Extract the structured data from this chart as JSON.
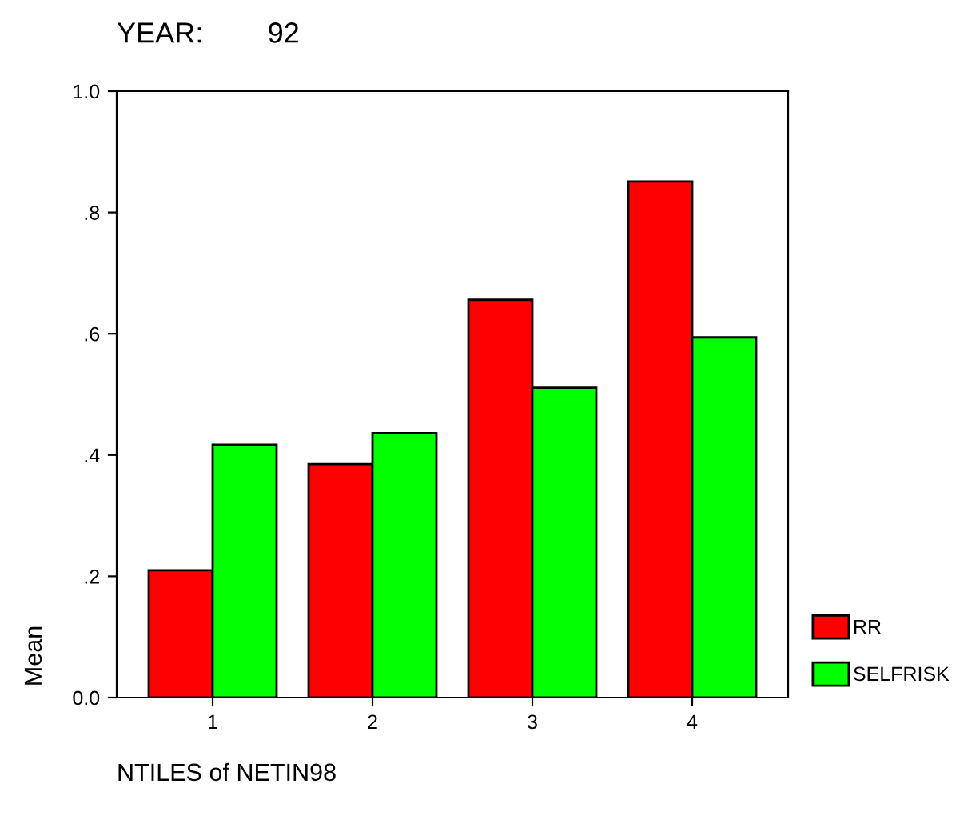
{
  "chart_data": {
    "type": "bar",
    "title": "YEAR:        92",
    "xlabel": "NTILES of NETIN98",
    "ylabel": "Mean",
    "categories": [
      "1",
      "2",
      "3",
      "4"
    ],
    "series": [
      {
        "name": "RR",
        "color": "#ff0000",
        "values": [
          0.21,
          0.385,
          0.656,
          0.851
        ]
      },
      {
        "name": "SELFRISK",
        "color": "#00ff00",
        "values": [
          0.417,
          0.436,
          0.511,
          0.594
        ]
      }
    ],
    "ylim": [
      0,
      1.0
    ],
    "yticks": [
      {
        "value": 0,
        "label": "0.0"
      },
      {
        "value": 0.2,
        "label": ".2"
      },
      {
        "value": 0.4,
        "label": ".4"
      },
      {
        "value": 0.6,
        "label": ".6"
      },
      {
        "value": 0.8,
        "label": ".8"
      },
      {
        "value": 1.0,
        "label": "1.0"
      }
    ],
    "grid": false,
    "legend": "bottom right"
  }
}
